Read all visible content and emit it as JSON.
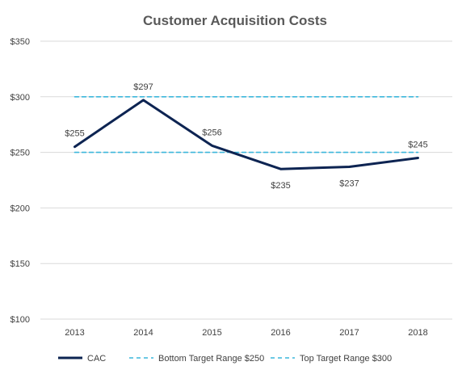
{
  "chart_data": {
    "type": "line",
    "title": "Customer Acquisition Costs",
    "categories": [
      "2013",
      "2014",
      "2015",
      "2016",
      "2017",
      "2018"
    ],
    "ylim": [
      100,
      350
    ],
    "y_ticks": [
      "$100",
      "$150",
      "$200",
      "$250",
      "$300",
      "$350"
    ],
    "y_tick_values": [
      100,
      150,
      200,
      250,
      300,
      350
    ],
    "grid": "horizontal",
    "legend_position": "bottom",
    "series": [
      {
        "name": "CAC",
        "values": [
          255,
          297,
          256,
          235,
          237,
          245
        ],
        "labels": [
          "$255",
          "$297",
          "$256",
          "$235",
          "$237",
          "$245"
        ],
        "color": "#0d2452",
        "style": "solid"
      },
      {
        "name": "Bottom Target Range $250",
        "values": [
          250,
          250,
          250,
          250,
          250,
          250
        ],
        "color": "#3cb7dc",
        "style": "dashed"
      },
      {
        "name": "Top Target Range $300",
        "values": [
          300,
          300,
          300,
          300,
          300,
          300
        ],
        "color": "#3cb7dc",
        "style": "dashed"
      }
    ]
  }
}
